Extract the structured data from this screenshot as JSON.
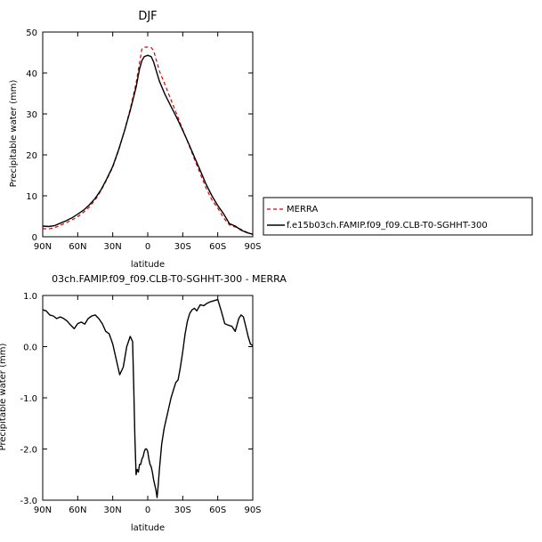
{
  "chart_data": [
    {
      "type": "line",
      "title": "DJF",
      "xlabel": "latitude",
      "ylabel": "Precipitable water (mm)",
      "xlim": [
        90,
        -90
      ],
      "ylim": [
        0,
        50
      ],
      "xticks": [
        90,
        60,
        30,
        0,
        -30,
        -60,
        -90
      ],
      "xtick_labels": [
        "90N",
        "60N",
        "30N",
        "0",
        "30S",
        "60S",
        "90S"
      ],
      "yticks": [
        0,
        10,
        20,
        30,
        40,
        50
      ],
      "ytick_labels": [
        "0",
        "10",
        "20",
        "30",
        "40",
        "50"
      ],
      "legend": "outside-right",
      "series": [
        {
          "name": "MERRA",
          "color": "#dd0000",
          "style": "dashed",
          "x": [
            90,
            85,
            80,
            75,
            70,
            65,
            60,
            55,
            50,
            45,
            40,
            35,
            30,
            25,
            20,
            15,
            10,
            7,
            5,
            3,
            0,
            -3,
            -5,
            -7,
            -10,
            -15,
            -20,
            -25,
            -30,
            -35,
            -40,
            -45,
            -50,
            -55,
            -60,
            -65,
            -70,
            -75,
            -80,
            -85,
            -90
          ],
          "y": [
            2.0,
            1.9,
            2.2,
            2.8,
            3.4,
            4.1,
            4.9,
            6.0,
            7.3,
            9.0,
            11.3,
            14.0,
            17.0,
            21.0,
            25.8,
            31.2,
            37.5,
            42.5,
            45.8,
            46.3,
            46.3,
            46.2,
            45.5,
            43.5,
            40.5,
            37.0,
            33.4,
            29.8,
            26.2,
            22.6,
            19.0,
            15.4,
            11.9,
            9.0,
            7.0,
            4.6,
            2.9,
            2.4,
            1.8,
            1.1,
            0.6
          ]
        },
        {
          "name": "f.e15b03ch.FAMIP.f09_f09.CLB-T0-SGHHT-300",
          "color": "#000000",
          "style": "solid",
          "x": [
            90,
            85,
            80,
            75,
            70,
            65,
            60,
            55,
            50,
            45,
            40,
            35,
            30,
            25,
            20,
            15,
            10,
            7,
            5,
            3,
            0,
            -3,
            -5,
            -7,
            -10,
            -15,
            -20,
            -25,
            -30,
            -35,
            -40,
            -45,
            -50,
            -55,
            -60,
            -65,
            -70,
            -75,
            -80,
            -85,
            -90
          ],
          "y": [
            2.6,
            2.5,
            2.7,
            3.3,
            3.9,
            4.6,
            5.5,
            6.5,
            7.8,
            9.4,
            11.5,
            14.2,
            17.2,
            21.2,
            25.8,
            30.8,
            36.5,
            41.0,
            43.0,
            44.0,
            44.3,
            44.0,
            42.7,
            40.8,
            38.0,
            34.6,
            31.8,
            29.0,
            26.0,
            22.8,
            19.5,
            16.2,
            12.8,
            10.0,
            7.6,
            5.6,
            3.2,
            2.6,
            1.6,
            1.0,
            0.6
          ]
        }
      ]
    },
    {
      "type": "line",
      "title": "03ch.FAMIP.f09_f09.CLB-T0-SGHHT-300 - MERRA",
      "xlabel": "latitude",
      "ylabel": "Precipitable water (mm)",
      "xlim": [
        90,
        -90
      ],
      "ylim": [
        -3.0,
        1.0
      ],
      "xticks": [
        90,
        60,
        30,
        0,
        -30,
        -60,
        -90
      ],
      "xtick_labels": [
        "90N",
        "60N",
        "30N",
        "0",
        "30S",
        "60S",
        "90S"
      ],
      "yticks": [
        -3.0,
        -2.0,
        -1.0,
        0.0,
        1.0
      ],
      "ytick_labels": [
        "-3.0",
        "-2.0",
        "-1.0",
        "0.0",
        "1.0"
      ],
      "series": [
        {
          "color": "#000000",
          "style": "solid",
          "x": [
            90,
            87,
            84,
            81,
            78,
            75,
            72,
            69,
            66,
            63,
            60,
            57,
            54,
            51,
            48,
            45,
            42,
            39,
            36,
            33,
            30,
            27,
            24,
            21,
            18,
            15,
            13,
            12,
            11,
            10,
            9,
            8,
            7,
            6,
            5,
            4,
            3,
            2,
            1,
            0,
            -1,
            -2,
            -3,
            -4,
            -5,
            -6,
            -7,
            -8,
            -9,
            -10,
            -12,
            -14,
            -16,
            -18,
            -20,
            -22,
            -24,
            -26,
            -28,
            -30,
            -32,
            -34,
            -36,
            -38,
            -40,
            -42,
            -45,
            -48,
            -51,
            -54,
            -57,
            -60,
            -63,
            -66,
            -69,
            -72,
            -75,
            -78,
            -80,
            -82,
            -84,
            -86,
            -88,
            -90
          ],
          "y": [
            0.72,
            0.7,
            0.62,
            0.6,
            0.55,
            0.58,
            0.55,
            0.5,
            0.42,
            0.35,
            0.45,
            0.48,
            0.44,
            0.55,
            0.6,
            0.62,
            0.55,
            0.45,
            0.3,
            0.25,
            0.05,
            -0.25,
            -0.55,
            -0.4,
            0.0,
            0.2,
            0.1,
            -0.8,
            -1.8,
            -2.5,
            -2.4,
            -2.45,
            -2.3,
            -2.3,
            -2.2,
            -2.15,
            -2.05,
            -2.0,
            -2.0,
            -2.05,
            -2.2,
            -2.3,
            -2.35,
            -2.45,
            -2.6,
            -2.7,
            -2.8,
            -2.95,
            -2.7,
            -2.4,
            -1.9,
            -1.6,
            -1.4,
            -1.2,
            -1.0,
            -0.85,
            -0.7,
            -0.65,
            -0.4,
            -0.1,
            0.25,
            0.5,
            0.65,
            0.72,
            0.75,
            0.7,
            0.82,
            0.8,
            0.85,
            0.88,
            0.9,
            0.92,
            0.7,
            0.45,
            0.42,
            0.4,
            0.3,
            0.55,
            0.62,
            0.58,
            0.4,
            0.2,
            0.05,
            0.02
          ]
        }
      ]
    }
  ]
}
